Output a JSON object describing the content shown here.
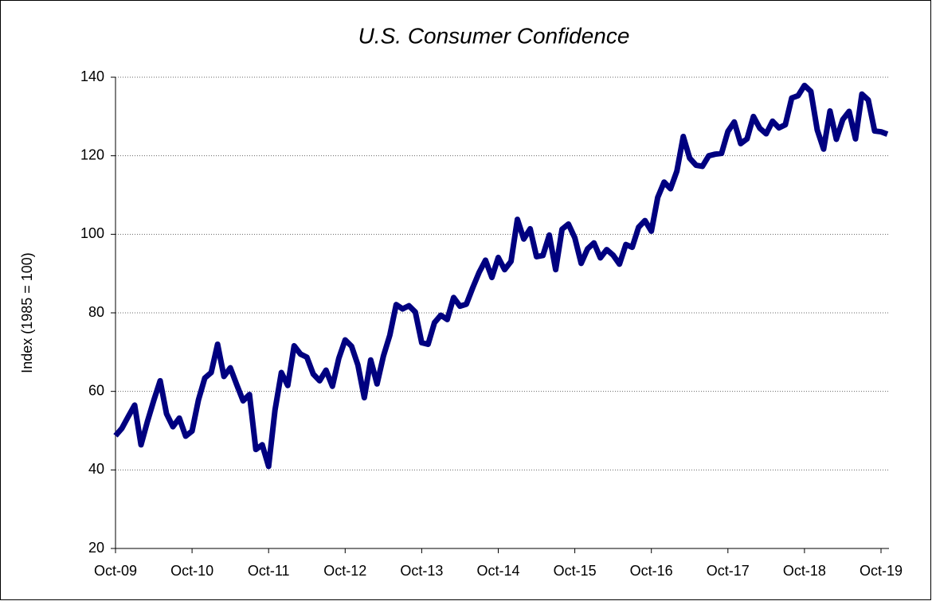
{
  "chart_data": {
    "type": "line",
    "title": "U.S. Consumer Confidence",
    "y_label": "Index (1985 = 100)",
    "categories": [
      "Oct-09",
      null,
      null,
      null,
      null,
      null,
      null,
      null,
      null,
      null,
      null,
      null,
      "Oct-10",
      null,
      null,
      null,
      null,
      null,
      null,
      null,
      null,
      null,
      null,
      null,
      "Oct-11",
      null,
      null,
      null,
      null,
      null,
      null,
      null,
      null,
      null,
      null,
      null,
      "Oct-12",
      null,
      null,
      null,
      null,
      null,
      null,
      null,
      null,
      null,
      null,
      null,
      "Oct-13",
      null,
      null,
      null,
      null,
      null,
      null,
      null,
      null,
      null,
      null,
      null,
      "Oct-14",
      null,
      null,
      null,
      null,
      null,
      null,
      null,
      null,
      null,
      null,
      null,
      "Oct-15",
      null,
      null,
      null,
      null,
      null,
      null,
      null,
      null,
      null,
      null,
      null,
      "Oct-16",
      null,
      null,
      null,
      null,
      null,
      null,
      null,
      null,
      null,
      null,
      null,
      "Oct-17",
      null,
      null,
      null,
      null,
      null,
      null,
      null,
      null,
      null,
      null,
      null,
      "Oct-18",
      null,
      null,
      null,
      null,
      null,
      null,
      null,
      null,
      null,
      null,
      null,
      "Oct-19",
      null
    ],
    "series": [
      {
        "name": "Consumer Confidence",
        "color": "#000080",
        "values": [
          48.7,
          50.6,
          53.6,
          56.5,
          46.4,
          52.3,
          57.7,
          62.7,
          54.3,
          51.0,
          53.2,
          48.6,
          49.9,
          57.8,
          63.4,
          64.8,
          72.0,
          63.8,
          66.0,
          61.7,
          57.6,
          59.2,
          45.2,
          46.4,
          40.9,
          55.2,
          64.8,
          61.5,
          71.6,
          69.5,
          68.7,
          64.4,
          62.7,
          65.4,
          61.3,
          68.4,
          73.1,
          71.5,
          66.7,
          58.4,
          68.0,
          61.9,
          69.0,
          74.3,
          82.1,
          81.0,
          81.8,
          80.2,
          72.4,
          72.0,
          77.5,
          79.4,
          78.3,
          83.9,
          81.7,
          82.2,
          86.4,
          90.3,
          93.4,
          89.0,
          94.1,
          91.0,
          93.1,
          103.8,
          98.8,
          101.4,
          94.3,
          94.6,
          99.8,
          91.0,
          101.3,
          102.6,
          99.1,
          92.6,
          96.3,
          97.8,
          94.0,
          96.1,
          94.7,
          92.4,
          97.4,
          96.7,
          101.8,
          103.5,
          100.8,
          109.4,
          113.3,
          111.6,
          116.1,
          124.9,
          119.4,
          117.6,
          117.3,
          120.0,
          120.4,
          120.6,
          126.2,
          128.6,
          123.1,
          124.3,
          130.0,
          127.0,
          125.6,
          128.8,
          127.1,
          127.9,
          134.7,
          135.3,
          137.9,
          136.4,
          126.6,
          121.7,
          131.4,
          124.2,
          129.2,
          131.3,
          124.3,
          135.7,
          134.2,
          126.3,
          126.1,
          125.5
        ]
      }
    ],
    "ylim": [
      20,
      140
    ],
    "yticks": [
      20,
      40,
      60,
      80,
      100,
      120,
      140
    ],
    "grid": true
  }
}
